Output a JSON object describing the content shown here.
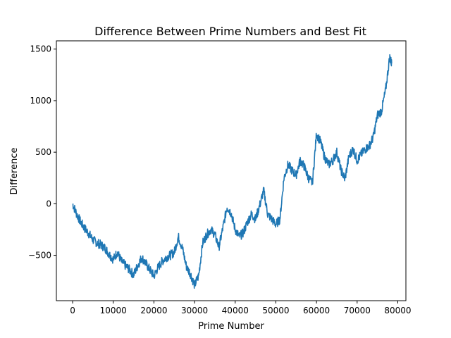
{
  "chart_data": {
    "type": "line",
    "title": "Difference Between Prime Numbers and Best Fit",
    "xlabel": "Prime Number",
    "ylabel": "Difference",
    "xlim": [
      -4000,
      82000
    ],
    "ylim": [
      -940,
      1580
    ],
    "x_ticks": [
      0,
      10000,
      20000,
      30000,
      40000,
      50000,
      60000,
      70000,
      80000
    ],
    "x_tick_labels": [
      "0",
      "10000",
      "20000",
      "30000",
      "40000",
      "50000",
      "60000",
      "70000",
      "80000"
    ],
    "y_ticks": [
      -500,
      0,
      500,
      1000,
      1500
    ],
    "y_tick_labels": [
      "−500",
      "0",
      "500",
      "1000",
      "1500"
    ],
    "grid": false,
    "series": [
      {
        "color": "#1f77b4",
        "x": [
          0,
          1000,
          2000,
          3000,
          4000,
          5000,
          6000,
          7000,
          8000,
          9000,
          10000,
          11000,
          12000,
          13000,
          14000,
          15000,
          16000,
          17000,
          18000,
          19000,
          20000,
          21000,
          22000,
          23000,
          24000,
          25000,
          26000,
          27000,
          28000,
          29000,
          30000,
          31000,
          32000,
          33000,
          34000,
          35000,
          36000,
          37000,
          38000,
          39000,
          40000,
          41000,
          42000,
          43000,
          44000,
          45000,
          46000,
          47000,
          48000,
          49000,
          50000,
          51000,
          52000,
          53000,
          54000,
          55000,
          56000,
          57000,
          58000,
          59000,
          60000,
          61000,
          62000,
          63000,
          64000,
          65000,
          66000,
          67000,
          68000,
          69000,
          70000,
          71000,
          72000,
          73000,
          74000,
          75000,
          76000,
          77000,
          78000,
          78500
        ],
        "y": [
          0,
          -100,
          -180,
          -240,
          -290,
          -350,
          -380,
          -400,
          -430,
          -490,
          -540,
          -470,
          -560,
          -600,
          -640,
          -690,
          -600,
          -520,
          -580,
          -640,
          -700,
          -620,
          -560,
          -520,
          -500,
          -470,
          -320,
          -430,
          -610,
          -680,
          -790,
          -700,
          -380,
          -300,
          -250,
          -300,
          -420,
          -230,
          -30,
          -90,
          -250,
          -320,
          -280,
          -180,
          -100,
          -150,
          -20,
          130,
          -100,
          -150,
          -200,
          -150,
          250,
          380,
          320,
          280,
          420,
          360,
          250,
          200,
          680,
          600,
          450,
          380,
          420,
          500,
          330,
          240,
          460,
          530,
          420,
          480,
          530,
          560,
          650,
          860,
          900,
          1100,
          1420,
          1360
        ]
      }
    ]
  }
}
